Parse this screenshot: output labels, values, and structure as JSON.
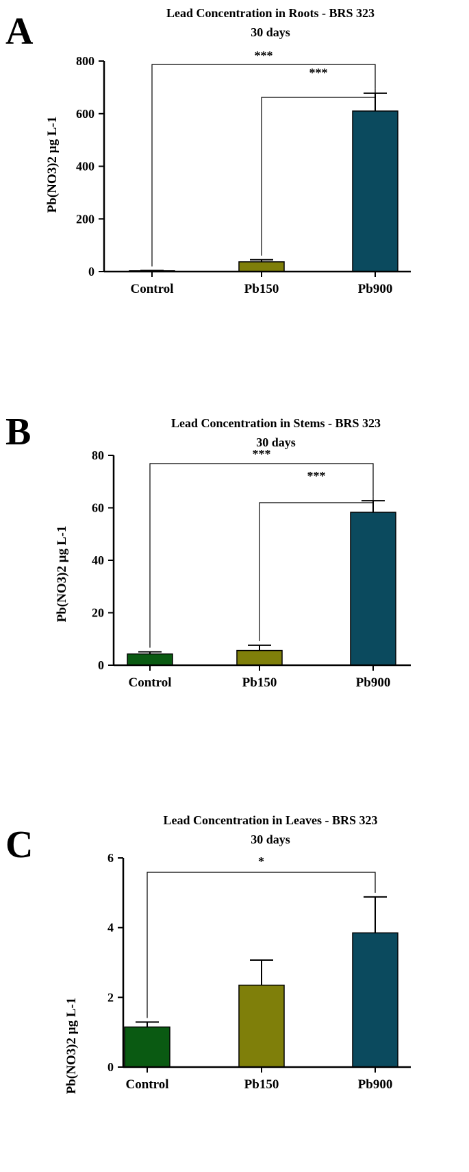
{
  "chart_data": [
    {
      "type": "bar",
      "panel": "A",
      "title": "Lead Concentration in Roots - BRS 323",
      "subtitle": "30 days",
      "ylabel": "Pb(NO3)2 µg L-1",
      "xlabel": "",
      "categories": [
        "Control",
        "Pb150",
        "Pb900"
      ],
      "values": [
        3,
        37,
        610
      ],
      "errors": [
        1,
        8,
        68
      ],
      "colors": [
        "#0a5a12",
        "#7f7f0a",
        "#0b4a5e"
      ],
      "ylim": [
        0,
        800
      ],
      "yticks": [
        "0",
        "200",
        "400",
        "600",
        "800"
      ],
      "grid": false,
      "significance": [
        {
          "from": 0,
          "to": 2,
          "label": "***"
        },
        {
          "from": 1,
          "to": 2,
          "label": "***"
        }
      ]
    },
    {
      "type": "bar",
      "panel": "B",
      "title": "Lead Concentration in Stems - BRS 323",
      "subtitle": "30 days",
      "ylabel": "Pb(NO3)2 µg L-1",
      "xlabel": "",
      "categories": [
        "Control",
        "Pb150",
        "Pb900"
      ],
      "values": [
        4.3,
        5.6,
        58.3
      ],
      "errors": [
        0.8,
        2.0,
        4.4
      ],
      "colors": [
        "#0a5a12",
        "#7f7f0a",
        "#0b4a5e"
      ],
      "ylim": [
        0,
        80
      ],
      "yticks": [
        "0",
        "20",
        "40",
        "60",
        "80"
      ],
      "grid": false,
      "significance": [
        {
          "from": 0,
          "to": 2,
          "label": "***"
        },
        {
          "from": 1,
          "to": 2,
          "label": "***"
        }
      ]
    },
    {
      "type": "bar",
      "panel": "C",
      "title": "Lead Concentration in Leaves - BRS 323",
      "subtitle": "30 days",
      "ylabel": "Pb(NO3)2 µg L-1",
      "xlabel": "",
      "categories": [
        "Control",
        "Pb150",
        "Pb900"
      ],
      "values": [
        1.15,
        2.35,
        3.85
      ],
      "errors": [
        0.14,
        0.72,
        1.03
      ],
      "colors": [
        "#0a5a12",
        "#7f7f0a",
        "#0b4a5e"
      ],
      "ylim": [
        0,
        6
      ],
      "yticks": [
        "0",
        "2",
        "4",
        "6"
      ],
      "grid": false,
      "significance": [
        {
          "from": 0,
          "to": 2,
          "label": "*"
        }
      ]
    }
  ]
}
